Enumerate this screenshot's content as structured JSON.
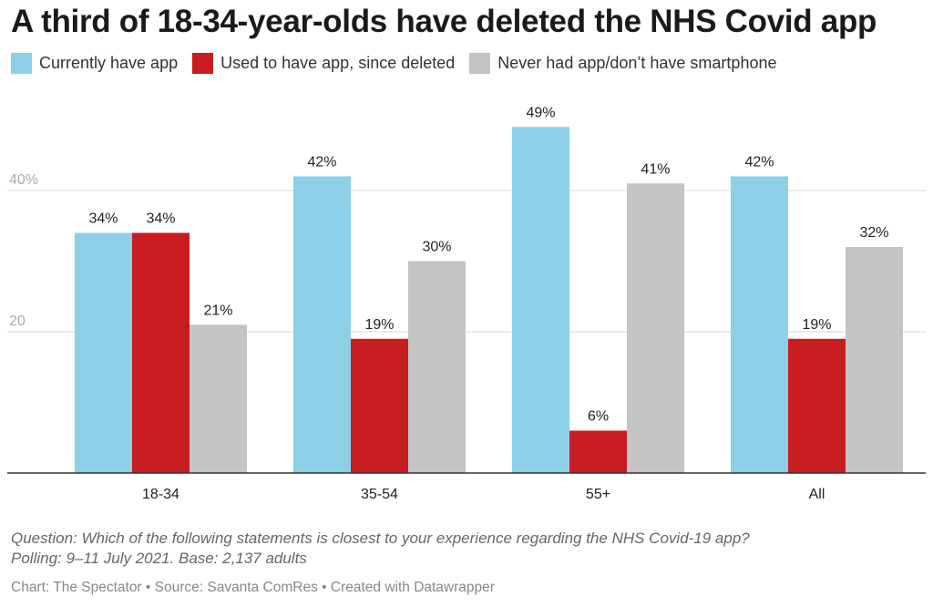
{
  "chart_data": {
    "type": "bar",
    "title": "A third of 18-34-year-olds have deleted the NHS Covid app",
    "categories": [
      "18-34",
      "35-54",
      "55+",
      "All"
    ],
    "series": [
      {
        "name": "Currently have app",
        "color": "#8ccfe7",
        "values": [
          34,
          42,
          49,
          42
        ],
        "labels": [
          "34%",
          "42%",
          "49%",
          "42%"
        ]
      },
      {
        "name": "Used to have app, since deleted",
        "color": "#c81d20",
        "values": [
          34,
          19,
          6,
          19
        ],
        "labels": [
          "34%",
          "19%",
          "6%",
          "19%"
        ]
      },
      {
        "name": "Never had app/don’t have smartphone",
        "color": "#c4c4c4",
        "values": [
          21,
          30,
          41,
          32
        ],
        "labels": [
          "21%",
          "30%",
          "41%",
          "32%"
        ]
      }
    ],
    "y_ticks": [
      {
        "value": 20,
        "label": "20"
      },
      {
        "value": 40,
        "label": "40%"
      }
    ],
    "ylim": [
      0,
      55
    ],
    "grid": true,
    "legend_position": "top-left"
  },
  "notes": {
    "question": "Question: Which of the following statements is closest to your experience regarding the NHS Covid-19 app?",
    "polling": "Polling: 9–11 July 2021. Base: 2,137 adults"
  },
  "credit": "Chart: The Spectator • Source: Savanta ComRes • Created with Datawrapper"
}
